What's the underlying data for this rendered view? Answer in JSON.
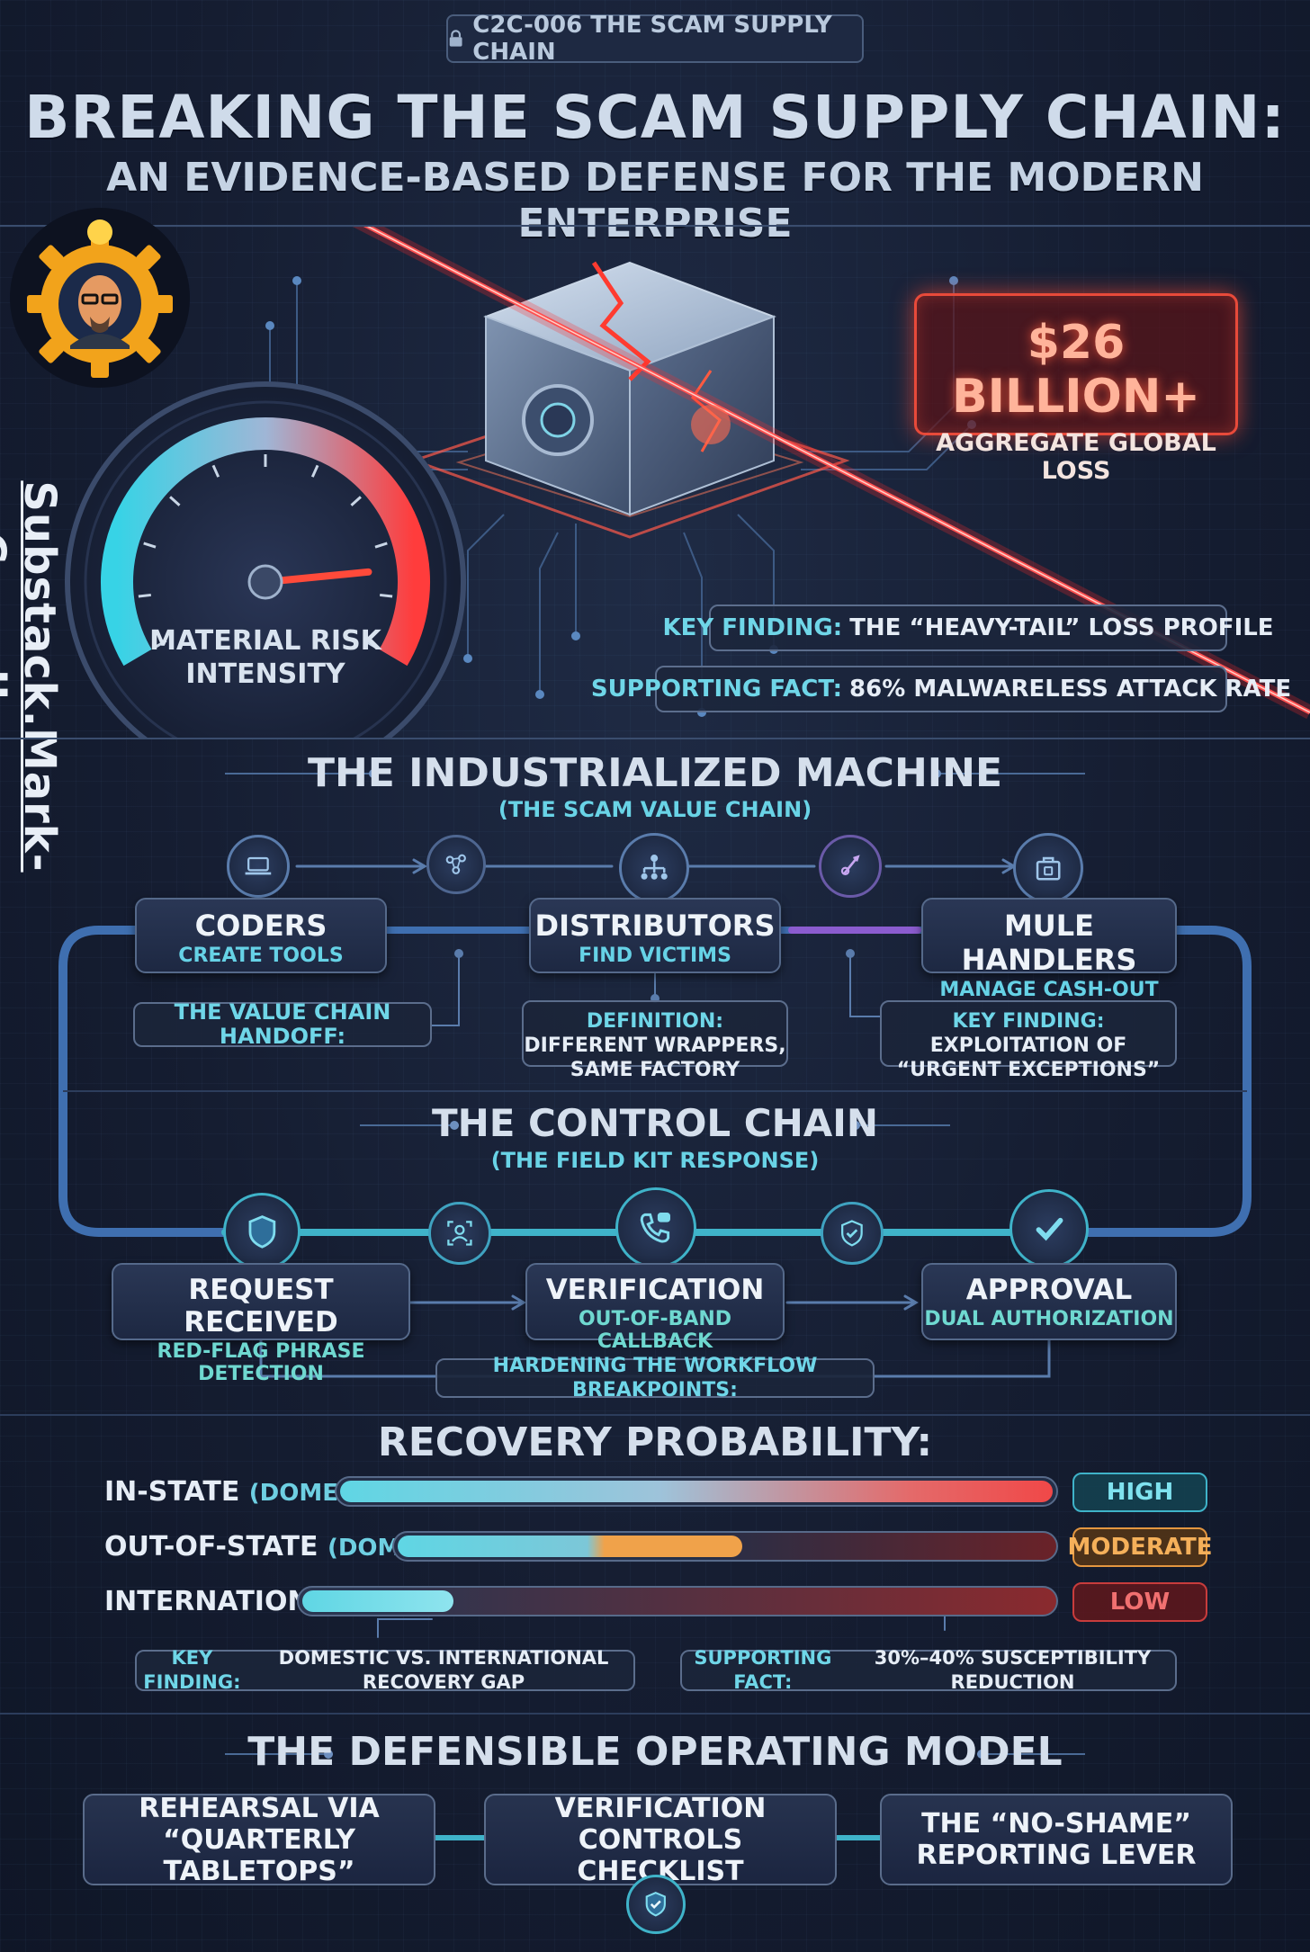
{
  "header": {
    "tag": "C2C-006 THE SCAM SUPPLY CHAIN",
    "title_line1": "BREAKING THE SCAM SUPPLY CHAIN:",
    "title_line2": "AN EVIDENCE-BASED DEFENSE FOR THE MODERN ENTERPRISE"
  },
  "side_url": "Substack.Mark-Carroll.com",
  "hero": {
    "loss_value": "$26 BILLION+",
    "loss_label": "AGGREGATE GLOBAL LOSS",
    "gauge_label": "MATERIAL RISK INTENSITY",
    "gauge_level_fraction": 0.85,
    "key_finding_label": "KEY FINDING:",
    "key_finding_text": "THE “HEAVY-TAIL” LOSS PROFILE",
    "supporting_fact_label": "SUPPORTING FACT:",
    "supporting_fact_text": "86% MALWARELESS ATTACK RATE"
  },
  "machine": {
    "title": "THE INDUSTRIALIZED MACHINE",
    "subtitle": "(THE SCAM VALUE CHAIN)",
    "nodes": [
      {
        "title": "CODERS",
        "sub": "CREATE TOOLS"
      },
      {
        "title": "DISTRIBUTORS",
        "sub": "FIND VICTIMS"
      },
      {
        "title": "MULE HANDLERS",
        "sub": "MANAGE CASH-OUT"
      }
    ],
    "handoff": "THE VALUE CHAIN HANDOFF:",
    "definition_label": "DEFINITION:",
    "definition_text": "DIFFERENT WRAPPERS, SAME FACTORY",
    "key_finding_label": "KEY FINDING:",
    "key_finding_text": "EXPLOITATION OF “URGENT EXCEPTIONS”"
  },
  "control": {
    "title": "THE CONTROL CHAIN",
    "subtitle": "(THE FIELD KIT RESPONSE)",
    "nodes": [
      {
        "title": "REQUEST RECEIVED",
        "sub": "RED-FLAG PHRASE DETECTION"
      },
      {
        "title": "VERIFICATION",
        "sub": "OUT-OF-BAND CALLBACK"
      },
      {
        "title": "APPROVAL",
        "sub": "DUAL AUTHORIZATION"
      }
    ],
    "hardening": "HARDENING THE WORKFLOW BREAKPOINTS:"
  },
  "recovery": {
    "title": "RECOVERY PROBABILITY:",
    "rows": [
      {
        "label": "IN-STATE",
        "qualifier": "(DOMESTIC)",
        "level": "HIGH",
        "color": "#5fd6e4"
      },
      {
        "label": "OUT-OF-STATE",
        "qualifier": "(DOMESTIC)",
        "level": "MODERATE",
        "color": "#f0a24a"
      },
      {
        "label": "INTERNATIONAL",
        "qualifier": "",
        "level": "LOW",
        "color": "#e04848"
      }
    ],
    "key_finding_label": "KEY FINDING:",
    "key_finding_text": "DOMESTIC VS. INTERNATIONAL RECOVERY GAP",
    "supporting_fact_label": "SUPPORTING FACT:",
    "supporting_fact_text": "30%–40% SUSCEPTIBILITY REDUCTION"
  },
  "operating_model": {
    "title": "THE DEFENSIBLE OPERATING MODEL",
    "items": [
      "REHEARSAL VIA “QUARTERLY TABLETOPS”",
      "VERIFICATION CONTROLS CHECKLIST",
      "THE “NO-SHAME” REPORTING LEVER"
    ]
  }
}
